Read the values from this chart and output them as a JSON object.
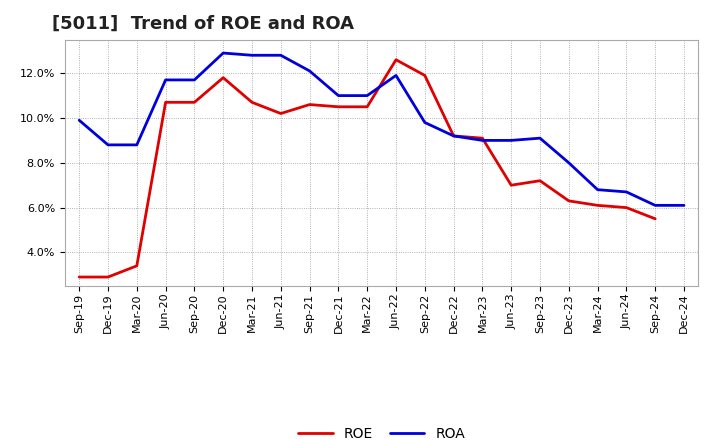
{
  "title": "[5011]  Trend of ROE and ROA",
  "x_labels": [
    "Sep-19",
    "Dec-19",
    "Mar-20",
    "Jun-20",
    "Sep-20",
    "Dec-20",
    "Mar-21",
    "Jun-21",
    "Sep-21",
    "Dec-21",
    "Mar-22",
    "Jun-22",
    "Sep-22",
    "Dec-22",
    "Mar-23",
    "Jun-23",
    "Sep-23",
    "Dec-23",
    "Mar-24",
    "Jun-24",
    "Sep-24",
    "Dec-24"
  ],
  "roe": [
    2.9,
    2.9,
    3.4,
    10.7,
    10.7,
    11.8,
    10.7,
    10.2,
    10.6,
    10.5,
    10.5,
    12.6,
    11.9,
    9.2,
    9.1,
    7.0,
    7.2,
    6.3,
    6.1,
    6.0,
    5.5,
    null
  ],
  "roa": [
    9.9,
    8.8,
    8.8,
    11.7,
    11.7,
    12.9,
    12.8,
    12.8,
    12.1,
    11.0,
    11.0,
    11.9,
    9.8,
    9.2,
    9.0,
    9.0,
    9.1,
    8.0,
    6.8,
    6.7,
    6.1,
    6.1
  ],
  "roe_color": "#e00000",
  "roa_color": "#0000dd",
  "ylim": [
    2.5,
    13.5
  ],
  "yticks": [
    4.0,
    6.0,
    8.0,
    10.0,
    12.0
  ],
  "background_color": "#ffffff",
  "plot_bg_color": "#ffffff",
  "grid_color": "#999999",
  "title_fontsize": 13,
  "legend_fontsize": 10,
  "axis_fontsize": 8,
  "linewidth": 2.0
}
